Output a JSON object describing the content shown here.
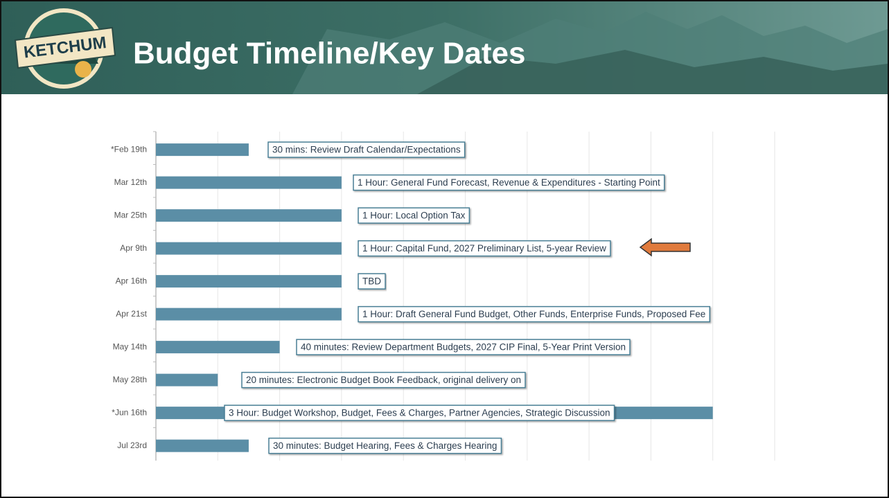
{
  "header": {
    "logo": "KETCHUM",
    "title": "Budget Timeline/Key Dates"
  },
  "chart_data": {
    "type": "hbar",
    "categories": [
      "*Feb 19th",
      "Mar 12th",
      "Mar 25th",
      "Apr 9th",
      "Apr 16th",
      "Apr 21st",
      "May 14th",
      "May 28th",
      "*Jun 16th",
      "Jul 23rd"
    ],
    "values": [
      30,
      60,
      60,
      60,
      60,
      60,
      40,
      20,
      180,
      30
    ],
    "annotations": [
      "30 mins: Review Draft Calendar/Expectations",
      "1 Hour: General Fund Forecast, Revenue & Expenditures - Starting Point",
      "1 Hour: Local Option Tax",
      "1 Hour: Capital Fund, 2027 Preliminary List, 5-year Review",
      "TBD",
      "1 Hour: Draft General Fund Budget, Other Funds, Enterprise Funds, Proposed Fee",
      "40 minutes: Review Department Budgets, 2027 CIP Final, 5-Year Print Version",
      "20 minutes: Electronic Budget Book Feedback, original delivery on",
      "3 Hour: Budget Workshop, Budget, Fees & Charges, Partner Agencies, Strategic Discussion",
      "30 minutes: Budget Hearing, Fees & Charges Hearing"
    ],
    "color": "#5b8ea6",
    "xlim": [
      0,
      200
    ],
    "xticks": [
      0,
      20,
      40,
      60,
      80,
      100,
      120,
      140,
      160,
      180,
      200
    ],
    "grid": true
  }
}
